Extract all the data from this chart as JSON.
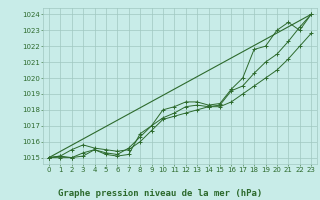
{
  "xlabel": "Graphe pression niveau de la mer (hPa)",
  "x_values": [
    0,
    1,
    2,
    3,
    4,
    5,
    6,
    7,
    8,
    9,
    10,
    11,
    12,
    13,
    14,
    15,
    16,
    17,
    18,
    19,
    20,
    21,
    22,
    23
  ],
  "line1": [
    1015.0,
    1015.1,
    1015.0,
    1015.3,
    1015.5,
    1015.2,
    1015.1,
    1015.2,
    1016.5,
    1017.0,
    1017.5,
    1017.8,
    1018.2,
    1018.3,
    1018.2,
    1018.3,
    1019.2,
    1019.5,
    1020.3,
    1021.0,
    1021.5,
    1022.3,
    1023.2,
    1024.0
  ],
  "line2": [
    1015.0,
    1015.1,
    1015.5,
    1015.8,
    1015.6,
    1015.5,
    1015.4,
    1015.5,
    1016.0,
    1016.7,
    1017.4,
    1017.6,
    1017.8,
    1018.0,
    1018.2,
    1018.2,
    1018.5,
    1019.0,
    1019.5,
    1020.0,
    1020.5,
    1021.2,
    1022.0,
    1022.8
  ],
  "line3": [
    1015.0,
    1015.0,
    1015.0,
    1015.1,
    1015.5,
    1015.3,
    1015.2,
    1015.6,
    1016.3,
    1017.0,
    1018.0,
    1018.2,
    1018.5,
    1018.5,
    1018.3,
    1018.4,
    1019.3,
    1020.0,
    1021.8,
    1022.0,
    1023.0,
    1023.5,
    1023.0,
    1024.0
  ],
  "line4_straight": [
    1015.0,
    1024.0
  ],
  "line4_x": [
    0,
    23
  ],
  "ylim": [
    1014.6,
    1024.4
  ],
  "xlim": [
    -0.5,
    23.5
  ],
  "yticks": [
    1015,
    1016,
    1017,
    1018,
    1019,
    1020,
    1021,
    1022,
    1023,
    1024
  ],
  "xticks": [
    0,
    1,
    2,
    3,
    4,
    5,
    6,
    7,
    8,
    9,
    10,
    11,
    12,
    13,
    14,
    15,
    16,
    17,
    18,
    19,
    20,
    21,
    22,
    23
  ],
  "line_color": "#2d6a2d",
  "bg_color": "#c8ece8",
  "grid_color": "#a0c8c0",
  "text_color": "#2d6a2d",
  "tick_fontsize": 5.0,
  "xlabel_fontsize": 6.5
}
